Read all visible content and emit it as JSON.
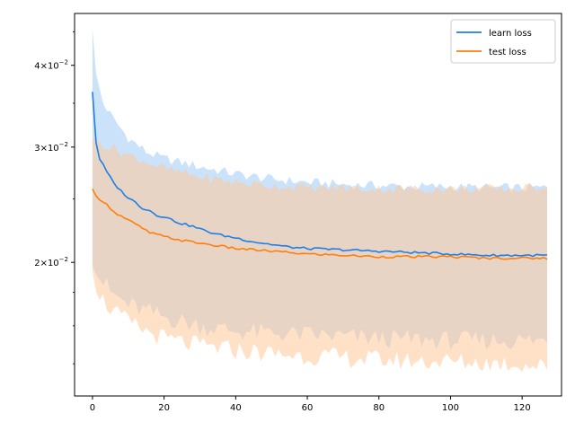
{
  "chart_data": {
    "type": "line",
    "title": "",
    "xlabel": "",
    "ylabel": "",
    "xlim": [
      -5,
      131
    ],
    "ylim": [
      0.0125,
      0.048
    ],
    "y_scale": "log",
    "grid": false,
    "legend_position": "top-right",
    "x_ticks": [
      0,
      20,
      40,
      60,
      80,
      100,
      120
    ],
    "x_tick_labels": [
      "0",
      "20",
      "40",
      "60",
      "80",
      "100",
      "120"
    ],
    "y_ticks": [
      0.02,
      0.03,
      0.04
    ],
    "y_tick_labels": [
      {
        "base": "2×10",
        "exp": "−2"
      },
      {
        "base": "3×10",
        "exp": "−2"
      },
      {
        "base": "4×10",
        "exp": "−2"
      }
    ],
    "x_start": 0,
    "x_step": 1,
    "series": [
      {
        "name": "learn loss",
        "color": "#1f7fe6",
        "band_color": "#9fcbf5",
        "anchors": [
          [
            0,
            0.0365
          ],
          [
            1,
            0.0305
          ],
          [
            2,
            0.0288
          ],
          [
            4,
            0.0275
          ],
          [
            6,
            0.0264
          ],
          [
            8,
            0.0257
          ],
          [
            10,
            0.0251
          ],
          [
            12,
            0.0247
          ],
          [
            14,
            0.0242
          ],
          [
            16,
            0.024
          ],
          [
            18,
            0.0236
          ],
          [
            20,
            0.0235
          ],
          [
            24,
            0.023
          ],
          [
            28,
            0.0227
          ],
          [
            32,
            0.0223
          ],
          [
            36,
            0.022
          ],
          [
            40,
            0.0218
          ],
          [
            45,
            0.0215
          ],
          [
            50,
            0.0213
          ],
          [
            55,
            0.0211
          ],
          [
            60,
            0.021
          ],
          [
            70,
            0.0209
          ],
          [
            80,
            0.0208
          ],
          [
            90,
            0.0207
          ],
          [
            100,
            0.0206
          ],
          [
            110,
            0.0205
          ],
          [
            120,
            0.0205
          ],
          [
            127,
            0.0205
          ]
        ],
        "upper_anchors": [
          [
            0,
            0.046
          ],
          [
            1,
            0.0385
          ],
          [
            3,
            0.035
          ],
          [
            6,
            0.033
          ],
          [
            10,
            0.031
          ],
          [
            15,
            0.0295
          ],
          [
            20,
            0.0288
          ],
          [
            30,
            0.028
          ],
          [
            40,
            0.0273
          ],
          [
            50,
            0.0268
          ],
          [
            60,
            0.0265
          ],
          [
            70,
            0.0263
          ],
          [
            80,
            0.0262
          ],
          [
            90,
            0.0261
          ],
          [
            100,
            0.0261
          ],
          [
            110,
            0.026
          ],
          [
            120,
            0.026
          ],
          [
            127,
            0.026
          ]
        ],
        "lower_anchors": [
          [
            0,
            0.0205
          ],
          [
            2,
            0.019
          ],
          [
            5,
            0.018
          ],
          [
            10,
            0.0172
          ],
          [
            20,
            0.0165
          ],
          [
            30,
            0.016
          ],
          [
            40,
            0.0157
          ],
          [
            60,
            0.0155
          ],
          [
            80,
            0.0153
          ],
          [
            100,
            0.0152
          ],
          [
            127,
            0.0152
          ]
        ]
      },
      {
        "name": "test loss",
        "color": "#ff7f0e",
        "band_color": "#ffc999",
        "anchors": [
          [
            0,
            0.0258
          ],
          [
            1,
            0.0252
          ],
          [
            3,
            0.0248
          ],
          [
            5,
            0.0242
          ],
          [
            7,
            0.0237
          ],
          [
            10,
            0.0232
          ],
          [
            13,
            0.0227
          ],
          [
            16,
            0.0222
          ],
          [
            20,
            0.0219
          ],
          [
            25,
            0.0216
          ],
          [
            30,
            0.0214
          ],
          [
            35,
            0.0212
          ],
          [
            40,
            0.021
          ],
          [
            50,
            0.0208
          ],
          [
            60,
            0.0206
          ],
          [
            70,
            0.0205
          ],
          [
            80,
            0.0204
          ],
          [
            90,
            0.0204
          ],
          [
            100,
            0.0204
          ],
          [
            110,
            0.0203
          ],
          [
            120,
            0.0203
          ],
          [
            127,
            0.0203
          ]
        ],
        "upper_anchors": [
          [
            0,
            0.031
          ],
          [
            2,
            0.0305
          ],
          [
            5,
            0.03
          ],
          [
            10,
            0.0292
          ],
          [
            15,
            0.0285
          ],
          [
            20,
            0.0278
          ],
          [
            30,
            0.027
          ],
          [
            40,
            0.0265
          ],
          [
            50,
            0.0262
          ],
          [
            60,
            0.026
          ],
          [
            70,
            0.026
          ],
          [
            80,
            0.0259
          ],
          [
            90,
            0.0259
          ],
          [
            100,
            0.0259
          ],
          [
            110,
            0.0259
          ],
          [
            120,
            0.0259
          ],
          [
            127,
            0.0262
          ]
        ],
        "lower_anchors": [
          [
            0,
            0.02
          ],
          [
            1,
            0.0185
          ],
          [
            3,
            0.0175
          ],
          [
            6,
            0.0168
          ],
          [
            10,
            0.0162
          ],
          [
            15,
            0.0157
          ],
          [
            20,
            0.0153
          ],
          [
            30,
            0.0149
          ],
          [
            40,
            0.0147
          ],
          [
            50,
            0.0145
          ],
          [
            60,
            0.0144
          ],
          [
            80,
            0.0142
          ],
          [
            100,
            0.0141
          ],
          [
            120,
            0.014
          ],
          [
            127,
            0.0138
          ]
        ]
      }
    ],
    "point_count": 128
  }
}
